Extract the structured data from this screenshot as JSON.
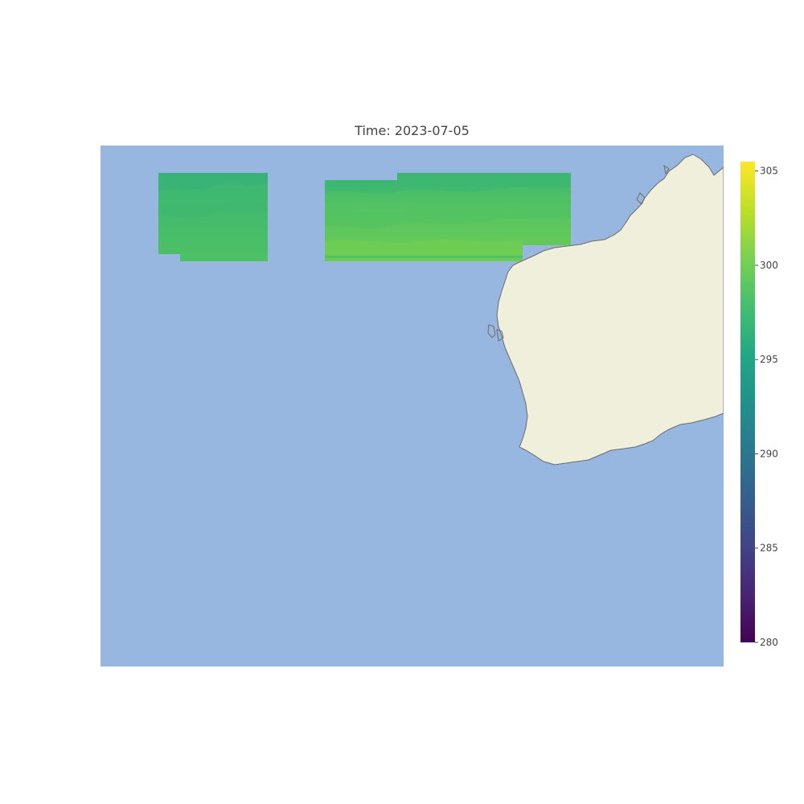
{
  "title": "Time: 2023-07-05",
  "colors": {
    "ocean": "#97b6e0",
    "land": "#efefdc",
    "coastline": "#6b6b6b",
    "colormap": "viridis"
  },
  "colorbar": {
    "min": 280,
    "max": 305.5,
    "ticks": [
      {
        "value": 280,
        "label": "280"
      },
      {
        "value": 285,
        "label": "285"
      },
      {
        "value": 290,
        "label": "290"
      },
      {
        "value": 295,
        "label": "295"
      },
      {
        "value": 300,
        "label": "300"
      },
      {
        "value": 305,
        "label": "305"
      }
    ]
  },
  "chart_data": {
    "type": "heatmap",
    "title": "Time: 2023-07-05",
    "variable_range": [
      280,
      305.5
    ],
    "patches": [
      {
        "name": "patch-west",
        "value_range": [
          296.5,
          298.5
        ]
      },
      {
        "name": "patch-east",
        "value_range": [
          297,
          300
        ]
      }
    ]
  }
}
